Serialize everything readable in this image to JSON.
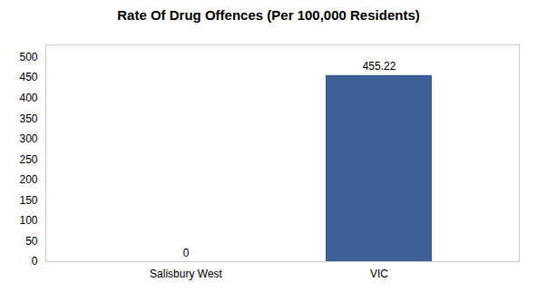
{
  "chart_data": {
    "type": "bar",
    "title": "Rate Of Drug Offences (Per 100,000 Residents)",
    "categories": [
      "Salisbury West",
      "VIC"
    ],
    "values": [
      0,
      455.22
    ],
    "color": "#3d6096",
    "ylim": [
      0,
      530
    ],
    "yticks": [
      0,
      50,
      100,
      150,
      200,
      250,
      300,
      350,
      400,
      450,
      500
    ],
    "grid": false,
    "data_labels": true
  }
}
